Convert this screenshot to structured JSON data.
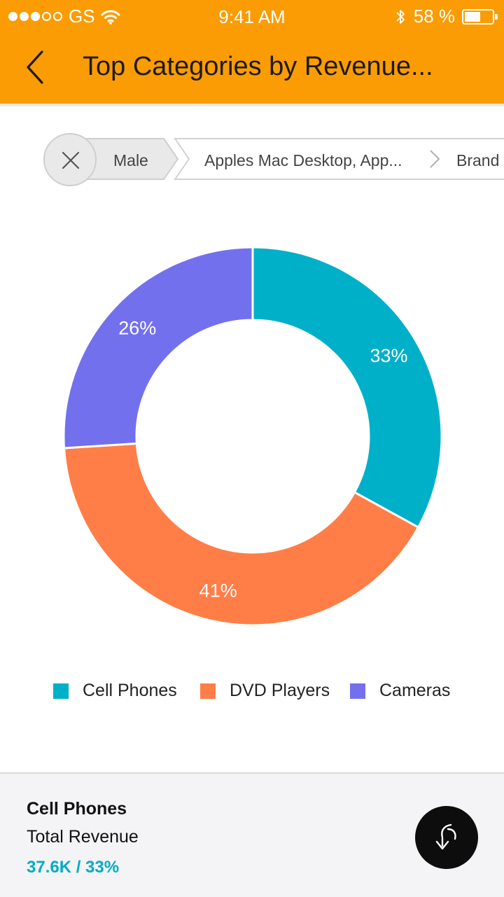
{
  "status_bar": {
    "carrier": "GS",
    "time": "9:41 AM",
    "battery_percent": "58 %",
    "battery_level": 0.58,
    "signal_full": 3,
    "signal_total": 5
  },
  "nav": {
    "title": "Top Categories by Revenue..."
  },
  "breadcrumb": {
    "items": [
      "Male",
      "Apples Mac Desktop, App...",
      "Brand"
    ]
  },
  "colors": {
    "accent": "#fb9c05",
    "cell_phones": "#00b0c8",
    "dvd_players": "#ff7e47",
    "cameras": "#7370ee"
  },
  "chart_data": {
    "type": "pie",
    "donut": true,
    "categories": [
      "Cell Phones",
      "DVD Players",
      "Cameras"
    ],
    "values": [
      33,
      41,
      26
    ],
    "labels": [
      "33%",
      "41%",
      "26%"
    ],
    "colors": [
      "#00b0c8",
      "#ff7e47",
      "#7370ee"
    ],
    "legend_position": "bottom"
  },
  "detail": {
    "name": "Cell Phones",
    "metric": "Total Revenue",
    "value": "37.6K / 33%"
  }
}
